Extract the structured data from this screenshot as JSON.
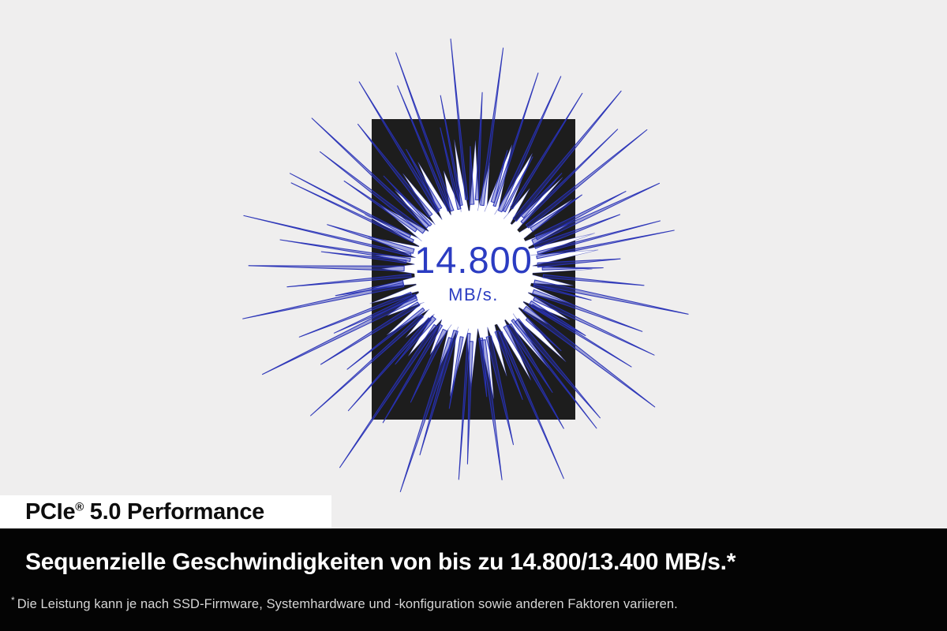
{
  "center": {
    "value": "14.800",
    "unit": "MB/s."
  },
  "badge": {
    "brand": "PCIe",
    "reg_mark": "®",
    "rest": " 5.0 Performance"
  },
  "headline": {
    "text": "Sequenzielle Geschwindigkeiten von bis zu 14.800/13.400 MB/s.*"
  },
  "footnote": {
    "marker": "*",
    "text": "Die Leistung kann je nach SSD-Firmware, Systemhardware und -konfiguration sowie anderen Faktoren variieren."
  },
  "colors": {
    "background": "#efeeee",
    "panel_dark": "#1d1d1d",
    "spike_blue": "#2832b6",
    "value_blue": "#2b3cc2",
    "band_black": "#040404",
    "badge_bg": "#ffffff"
  }
}
